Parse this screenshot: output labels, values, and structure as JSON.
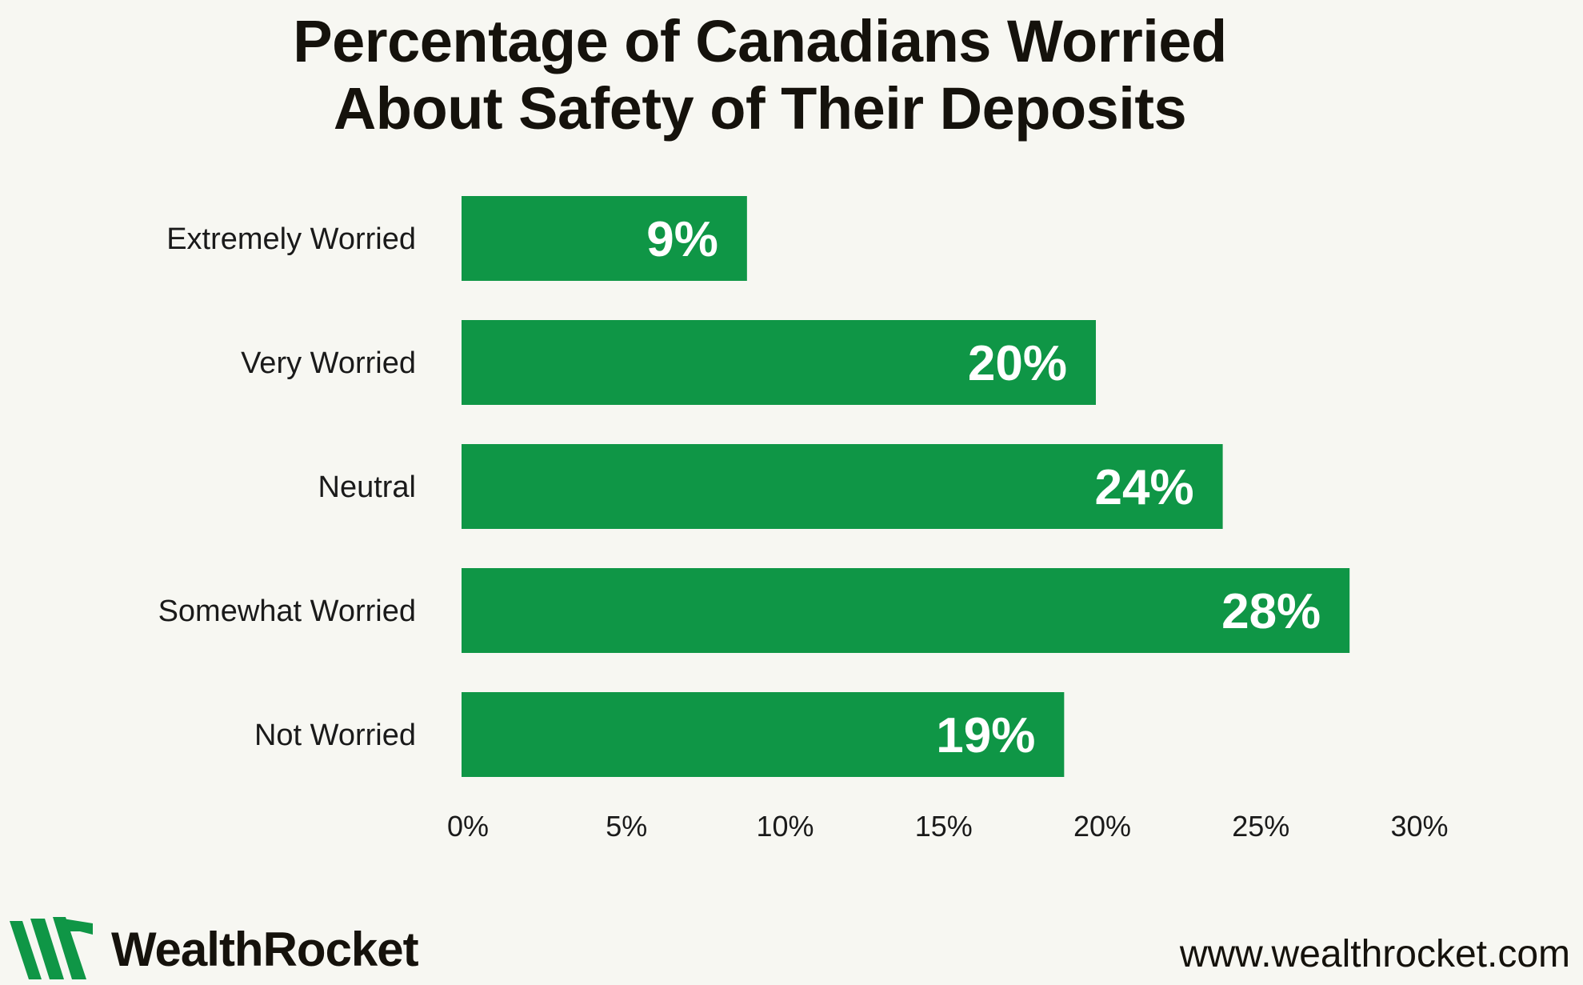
{
  "title_lines": [
    "Percentage of Canadians Worried",
    "About Safety of Their Deposits"
  ],
  "chart_data": {
    "type": "bar",
    "orientation": "horizontal",
    "categories": [
      "Extremely Worried",
      "Very Worried",
      "Neutral",
      "Somewhat Worried",
      "Not Worried"
    ],
    "values": [
      9,
      20,
      24,
      28,
      19
    ],
    "value_labels": [
      "9%",
      "20%",
      "24%",
      "28%",
      "19%"
    ],
    "title": "Percentage of Canadians Worried About Safety of Their Deposits",
    "xlabel": "",
    "ylabel": "",
    "xlim": [
      0,
      30
    ],
    "x_ticks": [
      "0%",
      "5%",
      "10%",
      "15%",
      "20%",
      "25%",
      "30%"
    ],
    "grid": false,
    "legend": "none",
    "bar_color": "#0f9646"
  },
  "footer": {
    "brand": "WealthRocket",
    "url": "www.wealthrocket.com",
    "logo_icon": "wealthrocket-logo-icon",
    "logo_color": "#0f9646"
  },
  "colors": {
    "background": "#f7f7f2",
    "text": "#15120c",
    "bar": "#0f9646"
  }
}
